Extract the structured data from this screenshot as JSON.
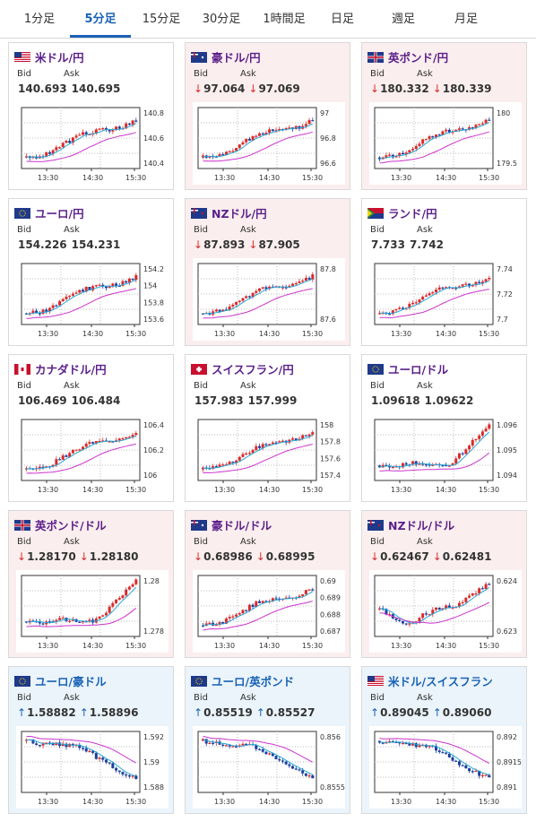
{
  "tabs": [
    {
      "label": "1分足"
    },
    {
      "label": "5分足"
    },
    {
      "label": "15分足"
    },
    {
      "label": "30分足"
    },
    {
      "label": "1時間足"
    },
    {
      "label": "日足"
    },
    {
      "label": "週足"
    },
    {
      "label": "月足"
    }
  ],
  "active_tab": 1,
  "labels": {
    "bid": "Bid",
    "ask": "Ask"
  },
  "colors": {
    "rise": "#d92b2b",
    "fall": "#1a3f9e",
    "ma_fast": "#29a8d6",
    "ma_slow": "#cc33cc",
    "down_arrow": "#d92b2b",
    "up_arrow": "#1a62b5",
    "active_tab": "#1a62b5"
  },
  "time_labels": [
    "13:30",
    "14:30",
    "15:30"
  ],
  "pairs": [
    {
      "title": "米ドル/円",
      "flag": "us-jp-flag-icon",
      "status": "flat",
      "arrow": "",
      "bid": "140.693",
      "ask": "140.695",
      "trend": "up",
      "y_ticks": [
        "140.8",
        "140.6",
        "140.4"
      ]
    },
    {
      "title": "豪ドル/円",
      "flag": "au-jp-flag-icon",
      "status": "down",
      "arrow": "↓",
      "bid": "97.064",
      "ask": "97.069",
      "trend": "up",
      "y_ticks": [
        "97",
        "96.8",
        "96.6"
      ]
    },
    {
      "title": "英ポンド/円",
      "flag": "gb-jp-flag-icon",
      "status": "down",
      "arrow": "↓",
      "bid": "180.332",
      "ask": "180.339",
      "trend": "up",
      "y_ticks": [
        "180",
        "179.5"
      ]
    },
    {
      "title": "ユーロ/円",
      "flag": "eu-jp-flag-icon",
      "status": "flat",
      "arrow": "",
      "bid": "154.226",
      "ask": "154.231",
      "trend": "up",
      "y_ticks": [
        "154.2",
        "154",
        "153.8",
        "153.6"
      ]
    },
    {
      "title": "NZドル/円",
      "flag": "nz-jp-flag-icon",
      "status": "down",
      "arrow": "↓",
      "bid": "87.893",
      "ask": "87.905",
      "trend": "up",
      "y_ticks": [
        "87.8",
        "87.6"
      ]
    },
    {
      "title": "ランド/円",
      "flag": "za-jp-flag-icon",
      "status": "flat",
      "arrow": "",
      "bid": "7.733",
      "ask": "7.742",
      "trend": "up",
      "y_ticks": [
        "7.74",
        "7.72",
        "7.7"
      ]
    },
    {
      "title": "カナダドル/円",
      "flag": "ca-jp-flag-icon",
      "status": "flat",
      "arrow": "",
      "bid": "106.469",
      "ask": "106.484",
      "trend": "up",
      "y_ticks": [
        "106.4",
        "106.2",
        "106"
      ]
    },
    {
      "title": "スイスフラン/円",
      "flag": "ch-jp-flag-icon",
      "status": "flat",
      "arrow": "",
      "bid": "157.983",
      "ask": "157.999",
      "trend": "up",
      "y_ticks": [
        "158",
        "157.8",
        "157.6",
        "157.4"
      ]
    },
    {
      "title": "ユーロ/ドル",
      "flag": "eu-us-flag-icon",
      "status": "flat",
      "arrow": "",
      "bid": "1.09618",
      "ask": "1.09622",
      "trend": "late-up",
      "y_ticks": [
        "1.096",
        "1.095",
        "1.094"
      ]
    },
    {
      "title": "英ポンド/ドル",
      "flag": "gb-us-flag-icon",
      "status": "down",
      "arrow": "↓",
      "bid": "1.28170",
      "ask": "1.28180",
      "trend": "late-up",
      "y_ticks": [
        "1.28",
        "1.278"
      ]
    },
    {
      "title": "豪ドル/ドル",
      "flag": "au-us-flag-icon",
      "status": "down",
      "arrow": "↓",
      "bid": "0.68986",
      "ask": "0.68995",
      "trend": "up",
      "y_ticks": [
        "0.69",
        "0.689",
        "0.688",
        "0.687"
      ]
    },
    {
      "title": "NZドル/ドル",
      "flag": "nz-us-flag-icon",
      "status": "down",
      "arrow": "↓",
      "bid": "0.62467",
      "ask": "0.62481",
      "trend": "dip-up",
      "y_ticks": [
        "0.624",
        "0.623"
      ]
    },
    {
      "title": "ユーロ/豪ドル",
      "flag": "eu-au-flag-icon",
      "status": "up",
      "arrow": "↑",
      "bid": "1.58882",
      "ask": "1.58896",
      "trend": "down",
      "y_ticks": [
        "1.592",
        "1.59",
        "1.588"
      ]
    },
    {
      "title": "ユーロ/英ポンド",
      "flag": "eu-gb-flag-icon",
      "status": "up",
      "arrow": "↑",
      "bid": "0.85519",
      "ask": "0.85527",
      "trend": "down",
      "y_ticks": [
        "0.856",
        "0.8555"
      ]
    },
    {
      "title": "米ドル/スイスフラン",
      "flag": "us-ch-flag-icon",
      "status": "up",
      "arrow": "↑",
      "bid": "0.89045",
      "ask": "0.89060",
      "trend": "down",
      "y_ticks": [
        "0.892",
        "0.8915",
        "0.891"
      ]
    }
  ]
}
